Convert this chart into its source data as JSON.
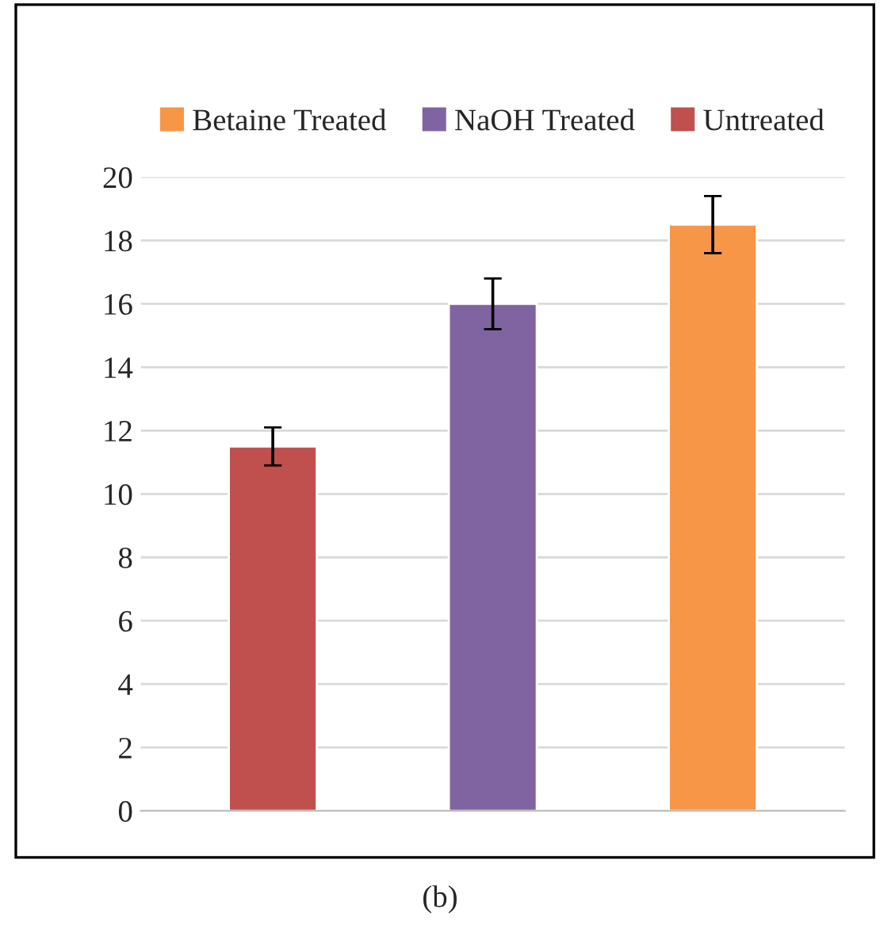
{
  "chart_data": {
    "type": "bar",
    "categories": [
      null,
      null,
      null
    ],
    "series": [
      {
        "name": "Betaine Treated",
        "color": "#f79646",
        "values": [
          null,
          null,
          18.5
        ],
        "errors": [
          null,
          null,
          0.9
        ]
      },
      {
        "name": "NaOH Treated",
        "color": "#8064a2",
        "values": [
          null,
          16,
          null
        ],
        "errors": [
          null,
          0.8,
          null
        ]
      },
      {
        "name": "Untreated",
        "color": "#c0504d",
        "values": [
          11.5,
          null,
          null
        ],
        "errors": [
          0.6,
          null,
          null
        ]
      }
    ],
    "ylim": [
      0,
      20
    ],
    "yticks": [
      0,
      2,
      4,
      6,
      8,
      10,
      12,
      14,
      16,
      18,
      20
    ],
    "grid": "y",
    "legend": "top",
    "annotations": [
      "(b)"
    ]
  }
}
